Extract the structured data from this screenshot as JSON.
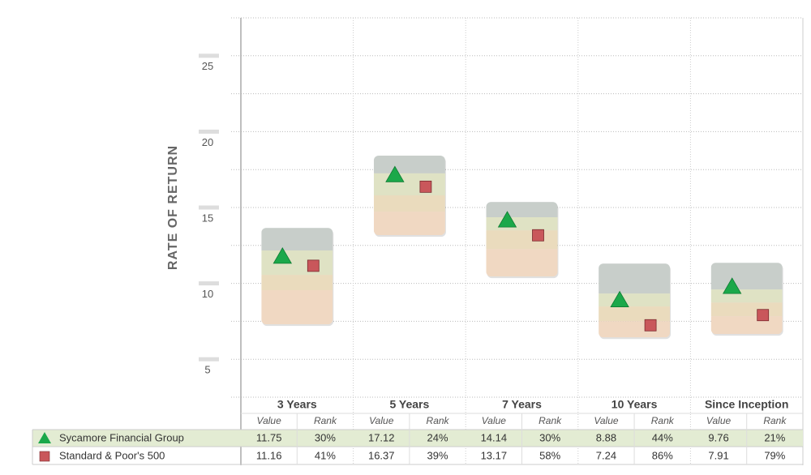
{
  "chart_data": {
    "type": "quartile_range",
    "y_axis_label": "RATE OF RETURN",
    "categories": [
      "3 Years",
      "5 Years",
      "7 Years",
      "10 Years",
      "Since Inception"
    ],
    "quartiles": [
      [
        13.66,
        12.17,
        10.56,
        9.55,
        7.3
      ],
      [
        18.42,
        17.25,
        15.8,
        14.73,
        13.18
      ],
      [
        15.37,
        14.36,
        13.5,
        12.27,
        10.45
      ],
      [
        11.31,
        9.33,
        8.48,
        7.51,
        6.44
      ],
      [
        11.36,
        9.6,
        8.74,
        7.83,
        6.66
      ]
    ],
    "band_colors": [
      "#c8ceca",
      "#dfe2c4",
      "#eadbbd",
      "#f0d8c2"
    ],
    "series": [
      {
        "name": "Sycamore Financial Group",
        "color": "#1ba84a",
        "marker": "triangle",
        "values": [
          11.75,
          17.12,
          14.14,
          8.88,
          9.76
        ],
        "rank_labels": [
          "30%",
          "24%",
          "30%",
          "44%",
          "21%"
        ]
      },
      {
        "name": "Standard & Poor's 500",
        "color": "#c9575b",
        "marker": "square",
        "values": [
          11.16,
          16.37,
          13.17,
          7.24,
          7.91
        ],
        "rank_labels": [
          "41%",
          "39%",
          "58%",
          "86%",
          "79%"
        ]
      }
    ],
    "table_columns": [
      "Value",
      "Rank"
    ],
    "ylim": [
      2.5,
      27.5
    ],
    "yticks": [
      5,
      10,
      15,
      20,
      25
    ],
    "minor_yticks": [
      2.5,
      7.5,
      12.5,
      17.5,
      22.5,
      27.5
    ],
    "grid": true
  }
}
